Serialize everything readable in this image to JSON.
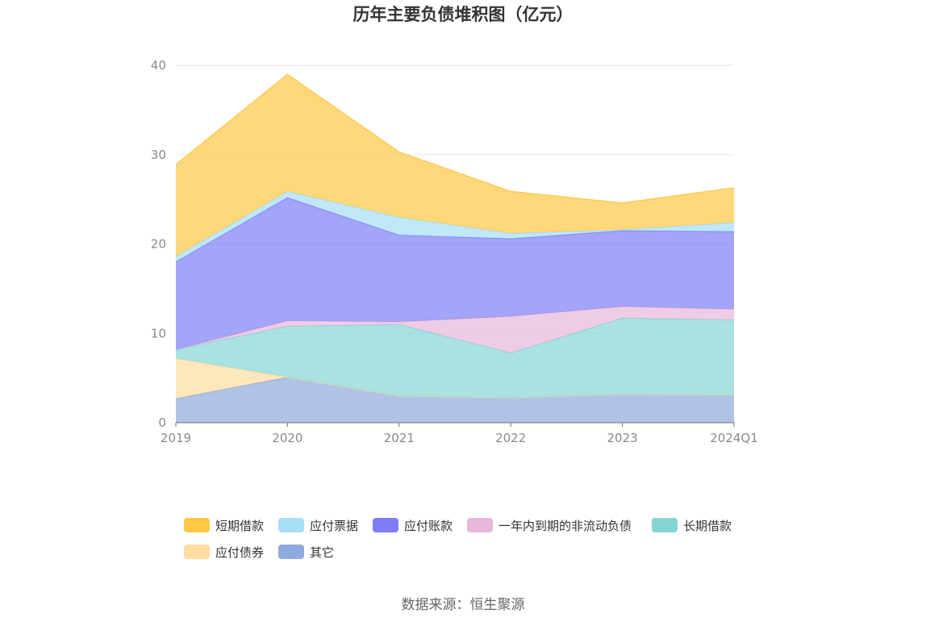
{
  "chart_data": {
    "type": "area",
    "stacked": true,
    "title": "历年主要负债堆积图（亿元）",
    "x": [
      "2019",
      "2020",
      "2021",
      "2022",
      "2023",
      "2024Q1"
    ],
    "ylim": [
      0,
      40
    ],
    "yticks": [
      0,
      10,
      20,
      30,
      40
    ],
    "grid": true,
    "legend_position": "bottom",
    "series": [
      {
        "name": "其它",
        "color": "#8FAADC",
        "values": [
          2.7,
          5.1,
          3.0,
          2.8,
          3.2,
          3.1
        ]
      },
      {
        "name": "应付债券",
        "color": "#FFDDA0",
        "values": [
          4.5,
          0.0,
          0.0,
          0.0,
          0.0,
          0.0
        ]
      },
      {
        "name": "长期借款",
        "color": "#85D5D5",
        "values": [
          1.0,
          5.7,
          8.0,
          5.0,
          8.5,
          8.4
        ]
      },
      {
        "name": "一年内到期的非流动负债",
        "color": "#E8B7DA",
        "values": [
          0.0,
          0.6,
          0.3,
          4.1,
          1.3,
          1.2
        ]
      },
      {
        "name": "应付账款",
        "color": "#7D7DF5",
        "values": [
          9.8,
          13.8,
          9.7,
          8.7,
          8.5,
          8.7
        ]
      },
      {
        "name": "应付票据",
        "color": "#A5DEF7",
        "values": [
          0.6,
          0.7,
          2.0,
          0.6,
          0.1,
          1.0
        ]
      },
      {
        "name": "短期借款",
        "color": "#FFC845",
        "values": [
          10.3,
          13.1,
          7.3,
          4.7,
          3.0,
          3.9
        ]
      }
    ]
  },
  "legend": {
    "rows": [
      [
        {
          "name": "短期借款",
          "color": "#FFC845"
        },
        {
          "name": "应付票据",
          "color": "#A5DEF7"
        },
        {
          "name": "应付账款",
          "color": "#7D7DF5"
        },
        {
          "name": "一年内到期的非流动负债",
          "color": "#E8B7DA"
        },
        {
          "name": "长期借款",
          "color": "#85D5D5"
        }
      ],
      [
        {
          "name": "应付债券",
          "color": "#FFDDA0"
        },
        {
          "name": "其它",
          "color": "#8FAADC"
        }
      ]
    ]
  },
  "source_text": "数据来源：恒生聚源"
}
